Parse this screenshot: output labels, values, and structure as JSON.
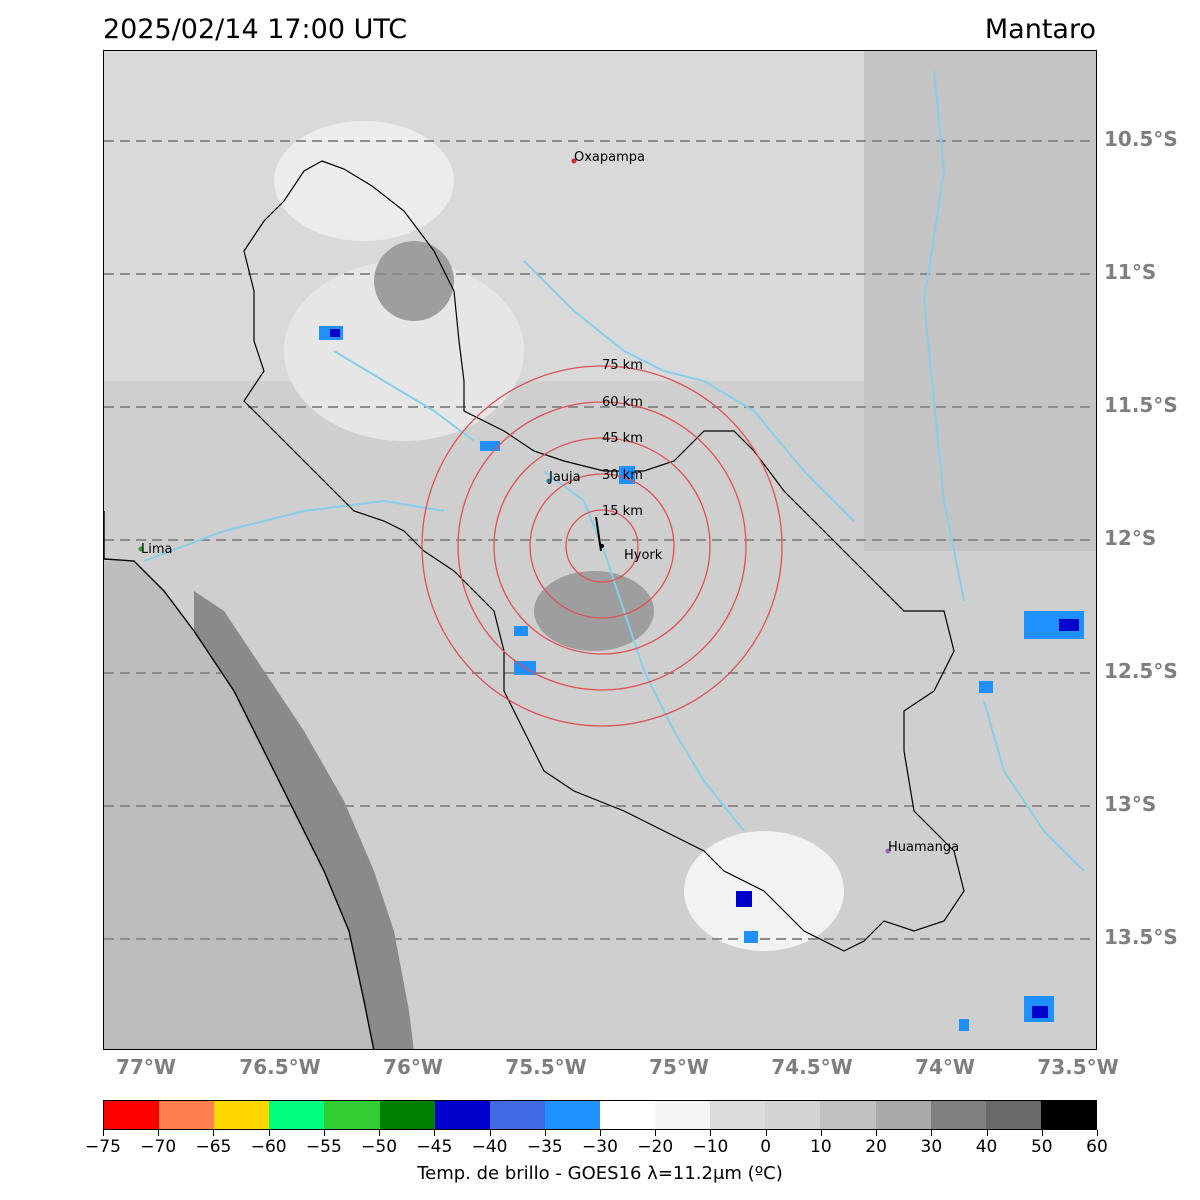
{
  "header": {
    "datetime": "2025/02/14 17:00 UTC",
    "region": "Mantaro"
  },
  "map": {
    "latitude_labels": [
      "10.5°S",
      "11°S",
      "11.5°S",
      "12°S",
      "12.5°S",
      "13°S",
      "13.5°S"
    ],
    "longitude_labels": [
      "77°W",
      "76.5°W",
      "76°W",
      "75.5°W",
      "75°W",
      "74.5°W",
      "74°W",
      "73.5°W"
    ],
    "cities": [
      {
        "name": "Oxapampa",
        "color": "#d62728"
      },
      {
        "name": "Jauja",
        "color": "#1f77b4"
      },
      {
        "name": "Hyork",
        "color": "#000000"
      },
      {
        "name": "Lima",
        "color": "#2ca02c"
      },
      {
        "name": "Huamanga",
        "color": "#9467bd"
      }
    ],
    "range_rings": [
      "15 km",
      "30 km",
      "45 km",
      "60 km",
      "75 km"
    ],
    "ring_color": "#e05050",
    "river_color": "#87ceeb",
    "boundary_color": "#000000"
  },
  "colorbar": {
    "colors": [
      "#ff0000",
      "#ff7f50",
      "#ffd700",
      "#00ff7f",
      "#32cd32",
      "#008000",
      "#0000cd",
      "#4169e1",
      "#1e90ff",
      "#ffffff",
      "#f5f5f5",
      "#dcdcdc",
      "#d3d3d3",
      "#c0c0c0",
      "#a9a9a9",
      "#808080",
      "#696969",
      "#000000"
    ],
    "ticks": [
      "−75",
      "−70",
      "−65",
      "−60",
      "−55",
      "−50",
      "−45",
      "−40",
      "−35",
      "−30",
      "−20",
      "−10",
      "0",
      "10",
      "20",
      "30",
      "40",
      "50",
      "60"
    ],
    "caption": "Temp. de brillo - GOES16 λ=11.2μm (ºC)"
  }
}
